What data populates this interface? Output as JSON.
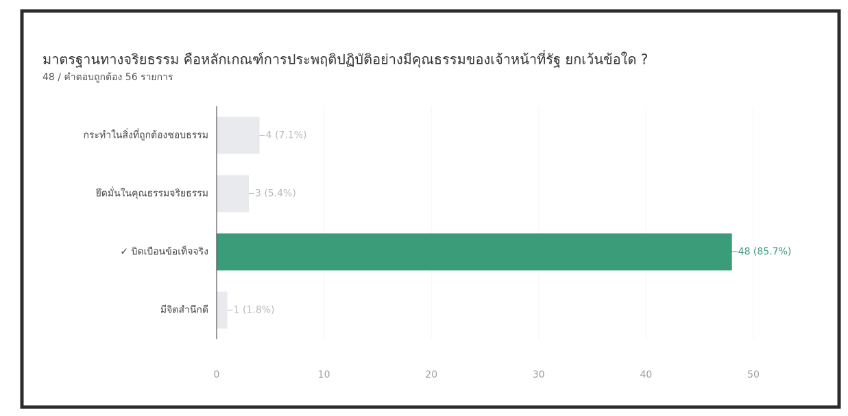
{
  "chart_data": {
    "type": "bar",
    "orientation": "horizontal",
    "title": "มาตรฐานทางจริยธรรม คือหลักเกณฑ์การประพฤติปฏิบัติอย่างมีคุณธรรมของเจ้าหน้าที่รัฐ ยกเว้นข้อใด ?",
    "subtitle": "48 / คำตอบถูกต้อง 56 รายการ",
    "categories": [
      "กระทำในสิ่งที่ถูกต้องชอบธรรม",
      "ยึดมั่นในคุณธรรมจริยธรรม",
      "✓ บิดเบือนข้อเท็จจริง",
      "มีจิตสำนึกดี"
    ],
    "values": [
      4,
      3,
      48,
      1
    ],
    "value_labels": [
      "4 (7.1%)",
      "3 (5.4%)",
      "48 (85.7%)",
      "1 (1.8%)"
    ],
    "colors": [
      "#e9eaee",
      "#e9eaee",
      "#3a9c78",
      "#e9eaee"
    ],
    "value_label_colors": [
      "#b8b8b8",
      "#b8b8b8",
      "#3a9c78",
      "#b8b8b8"
    ],
    "xlim": [
      0,
      50
    ],
    "xticks": [
      0,
      10,
      20,
      30,
      40,
      50
    ],
    "grid": true
  }
}
